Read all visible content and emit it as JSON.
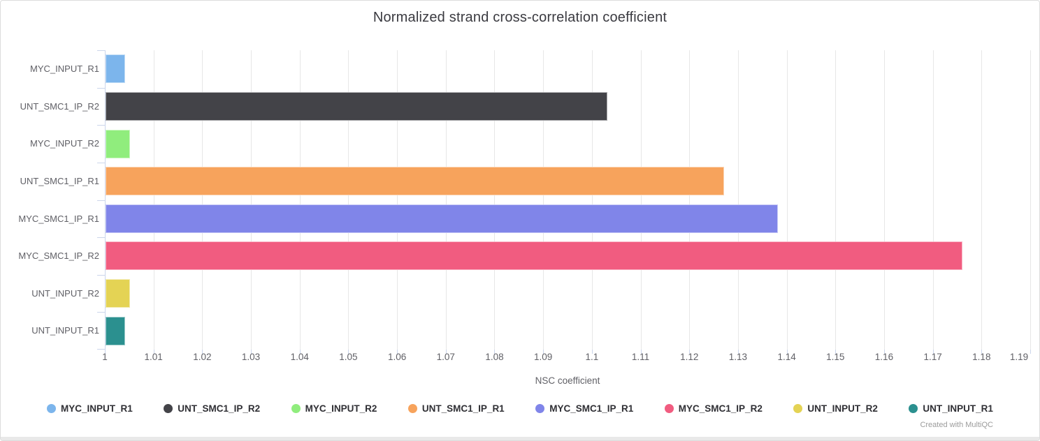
{
  "chart": {
    "title": "Normalized strand cross-correlation coefficient",
    "xlabel": "NSC coefficient",
    "credit": "Created with MultiQC"
  },
  "chart_data": {
    "type": "bar",
    "orientation": "horizontal",
    "title": "Normalized strand cross-correlation coefficient",
    "xlabel": "NSC coefficient",
    "ylabel": "",
    "xlim": [
      1,
      1.19
    ],
    "grid": true,
    "legend_position": "bottom",
    "xticks": [
      "1",
      "1.01",
      "1.02",
      "1.03",
      "1.04",
      "1.05",
      "1.06",
      "1.07",
      "1.08",
      "1.09",
      "1.1",
      "1.11",
      "1.12",
      "1.13",
      "1.14",
      "1.15",
      "1.16",
      "1.17",
      "1.18",
      "1.19"
    ],
    "categories": [
      "MYC_INPUT_R1",
      "UNT_SMC1_IP_R2",
      "MYC_INPUT_R2",
      "UNT_SMC1_IP_R1",
      "MYC_SMC1_IP_R1",
      "MYC_SMC1_IP_R2",
      "UNT_INPUT_R2",
      "UNT_INPUT_R1"
    ],
    "values": [
      1.004,
      1.103,
      1.005,
      1.127,
      1.138,
      1.176,
      1.005,
      1.004
    ],
    "colors": [
      "#7cb5ec",
      "#434348",
      "#90ed7d",
      "#f7a35c",
      "#8085e9",
      "#f15c80",
      "#e4d354",
      "#2b908f"
    ],
    "legend": [
      "MYC_INPUT_R1",
      "UNT_SMC1_IP_R2",
      "MYC_INPUT_R2",
      "UNT_SMC1_IP_R1",
      "MYC_SMC1_IP_R1",
      "MYC_SMC1_IP_R2",
      "UNT_INPUT_R2",
      "UNT_INPUT_R1"
    ],
    "axis_colors": {
      "grid": "#e7e7e7",
      "tick": "#ccd6eb",
      "label_text": "#606066"
    }
  }
}
